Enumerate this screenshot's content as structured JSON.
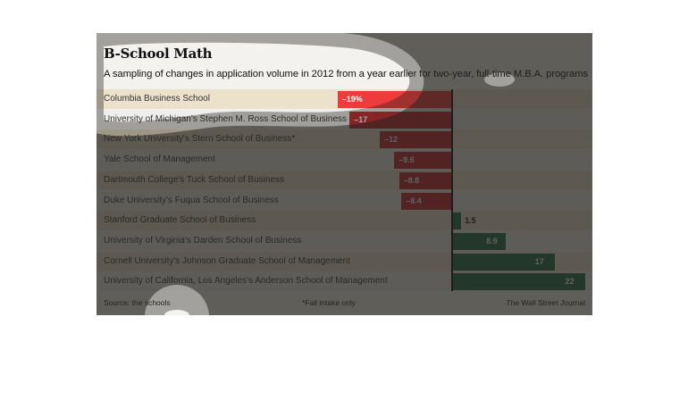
{
  "chart_data": {
    "type": "bar",
    "orientation": "horizontal",
    "title": "B-School Math",
    "subtitle": "A sampling of changes in application volume in 2012 from a year earlier for two-year, full-time M.B.A. programs",
    "categories": [
      "Columbia Business School",
      "University of Michigan's Stephen M. Ross School of Business",
      "New York University's Stern School of Business*",
      "Yale School of Management",
      "Dartmouth College's Tuck School of Business",
      "Duke University's Fuqua School of Business",
      "Stanford Graduate School of Business",
      "University of Virginia's Darden School of Business",
      "Cornell University's Johnson Graduate School of Management",
      "University of California, Los Angeles's Anderson School of Management"
    ],
    "values": [
      -19,
      -17,
      -12,
      -9.6,
      -8.8,
      -8.4,
      1.5,
      8.9,
      17,
      22
    ],
    "value_labels": [
      "–19%",
      "–17",
      "–12",
      "–9.6",
      "–8.8",
      "–8.4",
      "1.5",
      "8.9",
      "17",
      "22"
    ],
    "xlim": [
      -19,
      22
    ],
    "unit": "%",
    "colors": {
      "negative": "#c3272b",
      "positive": "#1d6b45"
    },
    "footer": {
      "source": "Source: the schools",
      "note": "*Fall intake only",
      "credit": "The Wall Street Journal"
    }
  }
}
